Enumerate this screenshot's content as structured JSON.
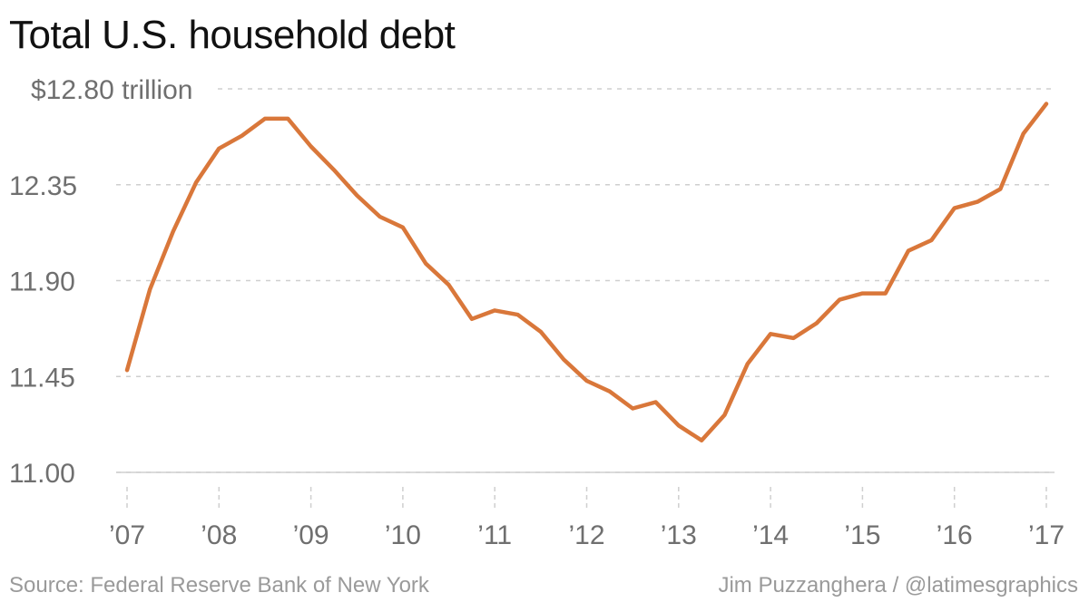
{
  "chart_data": {
    "type": "line",
    "title": "Total U.S. household debt",
    "xlabel": "",
    "ylabel": "",
    "y_top_label": "$12.80 trillion",
    "yticks": [
      {
        "value": 11.0,
        "label": "11.00"
      },
      {
        "value": 11.45,
        "label": "11.45"
      },
      {
        "value": 11.9,
        "label": "11.90"
      },
      {
        "value": 12.35,
        "label": "12.35"
      },
      {
        "value": 12.8,
        "label": "$12.80 trillion"
      }
    ],
    "ylim": [
      11.0,
      12.8
    ],
    "xlim": [
      2007,
      2017
    ],
    "xticks": [
      {
        "value": 2007,
        "label": "’07"
      },
      {
        "value": 2008,
        "label": "’08"
      },
      {
        "value": 2009,
        "label": "’09"
      },
      {
        "value": 2010,
        "label": "’10"
      },
      {
        "value": 2011,
        "label": "’11"
      },
      {
        "value": 2012,
        "label": "’12"
      },
      {
        "value": 2013,
        "label": "’13"
      },
      {
        "value": 2014,
        "label": "’14"
      },
      {
        "value": 2015,
        "label": "’15"
      },
      {
        "value": 2016,
        "label": "’16"
      },
      {
        "value": 2017,
        "label": "’17"
      }
    ],
    "grid": "horizontal-dashed",
    "legend": "none",
    "line_color": "#d9773a",
    "series": [
      {
        "x": [
          2007.0,
          2007.25,
          2007.5,
          2007.75,
          2008.0,
          2008.25,
          2008.5,
          2008.75,
          2009.0,
          2009.25,
          2009.5,
          2009.75,
          2010.0,
          2010.25,
          2010.5,
          2010.75,
          2011.0,
          2011.25,
          2011.5,
          2011.75,
          2012.0,
          2012.25,
          2012.5,
          2012.75,
          2013.0,
          2013.25,
          2013.5,
          2013.75,
          2014.0,
          2014.25,
          2014.5,
          2014.75,
          2015.0,
          2015.25,
          2015.5,
          2015.75,
          2016.0,
          2016.25,
          2016.5,
          2016.75,
          2017.0
        ],
        "values": [
          11.48,
          11.86,
          12.13,
          12.36,
          12.52,
          12.58,
          12.66,
          12.66,
          12.53,
          12.42,
          12.3,
          12.2,
          12.15,
          11.98,
          11.88,
          11.72,
          11.76,
          11.74,
          11.66,
          11.53,
          11.43,
          11.38,
          11.3,
          11.33,
          11.22,
          11.15,
          11.27,
          11.51,
          11.65,
          11.63,
          11.7,
          11.81,
          11.84,
          11.84,
          12.04,
          12.09,
          12.24,
          12.27,
          12.33,
          12.59,
          12.73
        ]
      }
    ]
  },
  "footer": {
    "source": "Source: Federal Reserve Bank of New York",
    "credit": "Jim Puzzanghera / @latimesgraphics"
  }
}
